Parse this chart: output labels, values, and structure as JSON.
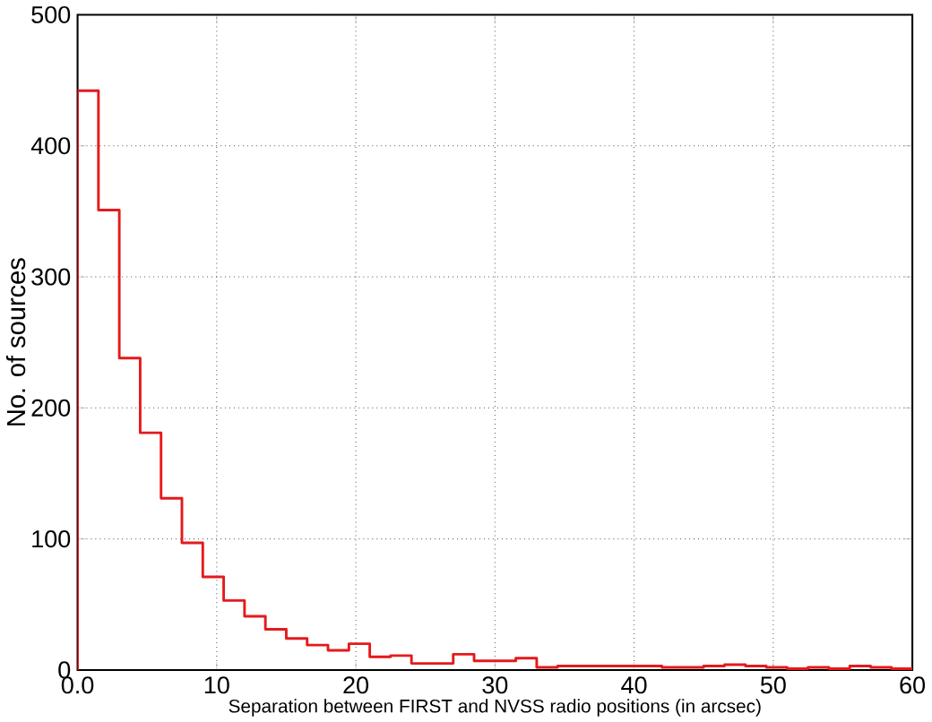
{
  "chart_data": {
    "type": "histogram",
    "xlabel": "Separation between FIRST and NVSS radio positions (in arcsec)",
    "ylabel": "No. of sources",
    "bins": [
      0,
      1.5,
      3,
      4.5,
      6,
      7.5,
      9,
      10.5,
      12,
      13.5,
      15,
      16.5,
      18,
      19.5,
      21,
      22.5,
      24,
      25.5,
      27,
      28.5,
      30,
      31.5,
      33,
      34.5,
      36,
      37.5,
      39,
      40.5,
      42,
      43.5,
      45,
      46.5,
      48,
      49.5,
      51,
      52.5,
      54,
      55.5,
      57,
      58.5,
      60
    ],
    "values": [
      442,
      351,
      238,
      181,
      131,
      97,
      71,
      53,
      41,
      31,
      24,
      19,
      15,
      20,
      10,
      11,
      5,
      5,
      12,
      7,
      7,
      9,
      2,
      3,
      3,
      3,
      3,
      3,
      2,
      2,
      3,
      4,
      3,
      2,
      1,
      2,
      1,
      3,
      2,
      1
    ],
    "color": "#e41a1c",
    "xlim": [
      0,
      60
    ],
    "ylim": [
      0,
      500
    ],
    "xticks": [
      {
        "value": 0,
        "label": "0.0"
      },
      10,
      20,
      30,
      40,
      50,
      60
    ],
    "yticks": [
      0,
      100,
      200,
      300,
      400,
      500
    ],
    "grid": true
  }
}
